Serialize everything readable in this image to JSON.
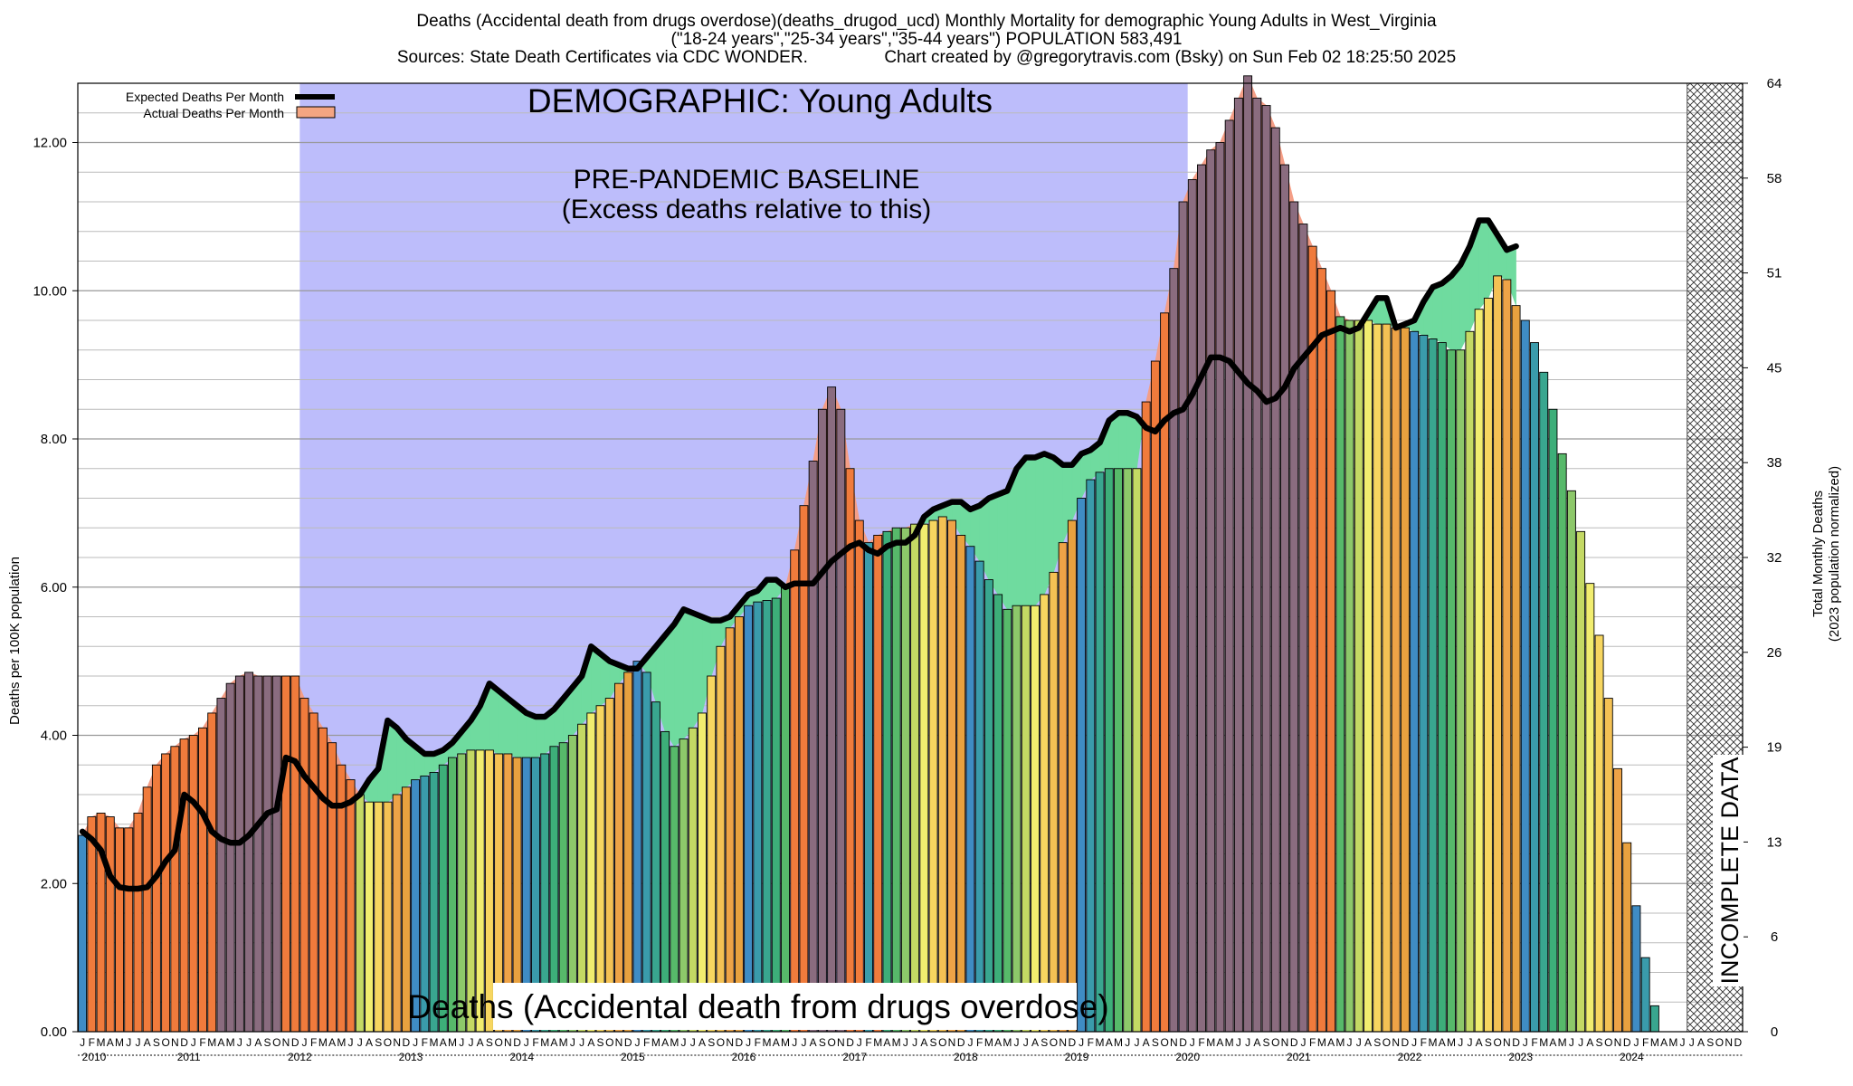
{
  "title_lines": [
    "Deaths (Accidental death from drugs overdose)(deaths_drugod_ucd) Monthly Mortality for demographic Young Adults in West_Virginia",
    "(\"18-24 years\",\"25-34 years\",\"35-44 years\") POPULATION 583,491",
    "Sources: State Death Certificates via CDC WONDER.                Chart created by @gregorytravis.com (Bsky) on Sun Feb 02 18:25:50 2025"
  ],
  "chart_data": {
    "type": "bar",
    "title": "DEMOGRAPHIC: Young Adults",
    "baseline_label_line1": "PRE-PANDEMIC BASELINE",
    "baseline_label_line2": "(Excess deaths relative to this)",
    "bottom_label": "Deaths (Accidental death from drugs overdose)",
    "incomplete_label": "INCOMPLETE DATA",
    "ylabel": "Deaths per 100K population",
    "y2label_line1": "Total Monthly Deaths",
    "y2label_line2": "(2023 population normalized)",
    "ylim": [
      0,
      12.8
    ],
    "y_ticks": [
      "0.00",
      "2.00",
      "4.00",
      "6.00",
      "8.00",
      "10.00",
      "12.00"
    ],
    "y2_ticks": [
      "0",
      "6",
      "13",
      "19",
      "26",
      "32",
      "38",
      "45",
      "51",
      "58",
      "64"
    ],
    "years": [
      "2010",
      "2011",
      "2012",
      "2013",
      "2014",
      "2015",
      "2016",
      "2017",
      "2018",
      "2019",
      "2020",
      "2021",
      "2022",
      "2023",
      "2024"
    ],
    "month_letters": [
      "J",
      "F",
      "M",
      "A",
      "M",
      "J",
      "J",
      "A",
      "S",
      "O",
      "N",
      "D"
    ],
    "baseline_period": {
      "start_month_index": 24,
      "end_month_index": 120
    },
    "incomplete_from_month_index": 174,
    "legend": [
      {
        "label": "Expected Deaths Per Month",
        "color": "#000000"
      },
      {
        "label": "Actual Deaths Per Month",
        "color": "#f4a582"
      }
    ],
    "colors": {
      "baseline_region": "#bdbdfb",
      "deficit_fill": "#6fdb9f",
      "deficit_fill_2024": "#9dfc9d",
      "excess_fill": "#f49e86",
      "bar_palette": [
        "#3f8cc4",
        "#3a9bab",
        "#39a68f",
        "#3dae79",
        "#57b96a",
        "#8dc86a",
        "#c4d964",
        "#f1ed6f",
        "#f7d660",
        "#f4c154",
        "#eea347",
        "#e8a13f"
      ],
      "excess_bar": "#f07b3c",
      "excess_bar_high": "#8a6c7f"
    },
    "series": [
      {
        "name": "Actual Deaths Per Month",
        "values": [
          2.65,
          2.9,
          2.95,
          2.9,
          2.75,
          2.75,
          2.95,
          3.3,
          3.6,
          3.75,
          3.85,
          3.95,
          4.0,
          4.1,
          4.3,
          4.5,
          4.7,
          4.8,
          4.85,
          4.8,
          4.8,
          4.8,
          4.8,
          4.8,
          4.5,
          4.3,
          4.1,
          3.9,
          3.6,
          3.4,
          3.2,
          3.1,
          3.1,
          3.1,
          3.2,
          3.3,
          3.4,
          3.45,
          3.5,
          3.6,
          3.7,
          3.75,
          3.8,
          3.8,
          3.8,
          3.75,
          3.75,
          3.7,
          3.7,
          3.7,
          3.75,
          3.85,
          3.9,
          4.0,
          4.15,
          4.3,
          4.4,
          4.5,
          4.7,
          4.85,
          5.0,
          4.85,
          4.45,
          4.05,
          3.85,
          3.95,
          4.1,
          4.3,
          4.8,
          5.2,
          5.45,
          5.6,
          5.75,
          5.8,
          5.82,
          5.85,
          6.0,
          6.5,
          7.1,
          7.7,
          8.4,
          8.7,
          8.4,
          7.6,
          6.9,
          6.6,
          6.7,
          6.75,
          6.8,
          6.8,
          6.85,
          6.85,
          6.9,
          6.95,
          6.9,
          6.7,
          6.55,
          6.35,
          6.1,
          5.9,
          5.7,
          5.75,
          5.75,
          5.75,
          5.9,
          6.2,
          6.6,
          6.9,
          7.2,
          7.45,
          7.55,
          7.6,
          7.6,
          7.6,
          7.6,
          8.5,
          9.05,
          9.7,
          10.3,
          11.2,
          11.5,
          11.7,
          11.9,
          12.0,
          12.3,
          12.6,
          12.9,
          12.6,
          12.5,
          12.2,
          11.7,
          11.2,
          10.9,
          10.6,
          10.3,
          10.0,
          9.65,
          9.6,
          9.6,
          9.6,
          9.55,
          9.55,
          9.5,
          9.5,
          9.45,
          9.4,
          9.35,
          9.3,
          9.2,
          9.2,
          9.45,
          9.75,
          9.9,
          10.2,
          10.15,
          9.8,
          9.6,
          9.3,
          8.9,
          8.4,
          7.8,
          7.3,
          6.75,
          6.05,
          5.35,
          4.5,
          3.55,
          2.55,
          1.7,
          1.0,
          0.35
        ]
      },
      {
        "name": "Expected Deaths Per Month",
        "values": [
          2.7,
          2.6,
          2.45,
          2.1,
          1.95,
          1.93,
          1.93,
          1.95,
          2.1,
          2.3,
          2.45,
          3.2,
          3.1,
          2.95,
          2.7,
          2.6,
          2.55,
          2.55,
          2.65,
          2.8,
          2.95,
          3.0,
          3.7,
          3.65,
          3.45,
          3.3,
          3.15,
          3.05,
          3.05,
          3.1,
          3.2,
          3.4,
          3.55,
          4.2,
          4.1,
          3.95,
          3.85,
          3.75,
          3.75,
          3.8,
          3.9,
          4.05,
          4.2,
          4.4,
          4.7,
          4.6,
          4.5,
          4.4,
          4.3,
          4.25,
          4.25,
          4.35,
          4.5,
          4.65,
          4.8,
          5.2,
          5.1,
          5.0,
          4.95,
          4.9,
          4.9,
          5.05,
          5.2,
          5.35,
          5.5,
          5.7,
          5.65,
          5.6,
          5.55,
          5.55,
          5.6,
          5.75,
          5.9,
          5.95,
          6.1,
          6.1,
          6.0,
          6.05,
          6.05,
          6.05,
          6.2,
          6.35,
          6.45,
          6.55,
          6.6,
          6.5,
          6.45,
          6.55,
          6.6,
          6.6,
          6.7,
          6.95,
          7.05,
          7.1,
          7.15,
          7.15,
          7.05,
          7.1,
          7.2,
          7.25,
          7.3,
          7.6,
          7.75,
          7.75,
          7.8,
          7.75,
          7.65,
          7.65,
          7.8,
          7.85,
          7.95,
          8.25,
          8.35,
          8.35,
          8.3,
          8.15,
          8.1,
          8.25,
          8.35,
          8.4,
          8.6,
          8.85,
          9.1,
          9.1,
          9.05,
          8.9,
          8.75,
          8.65,
          8.5,
          8.55,
          8.7,
          8.95,
          9.1,
          9.25,
          9.4,
          9.45,
          9.5,
          9.45,
          9.5,
          9.7,
          9.9,
          9.9,
          9.5,
          9.55,
          9.6,
          9.85,
          10.05,
          10.1,
          10.2,
          10.35,
          10.6,
          10.95,
          10.95,
          10.75,
          10.55,
          10.6
        ]
      }
    ]
  }
}
